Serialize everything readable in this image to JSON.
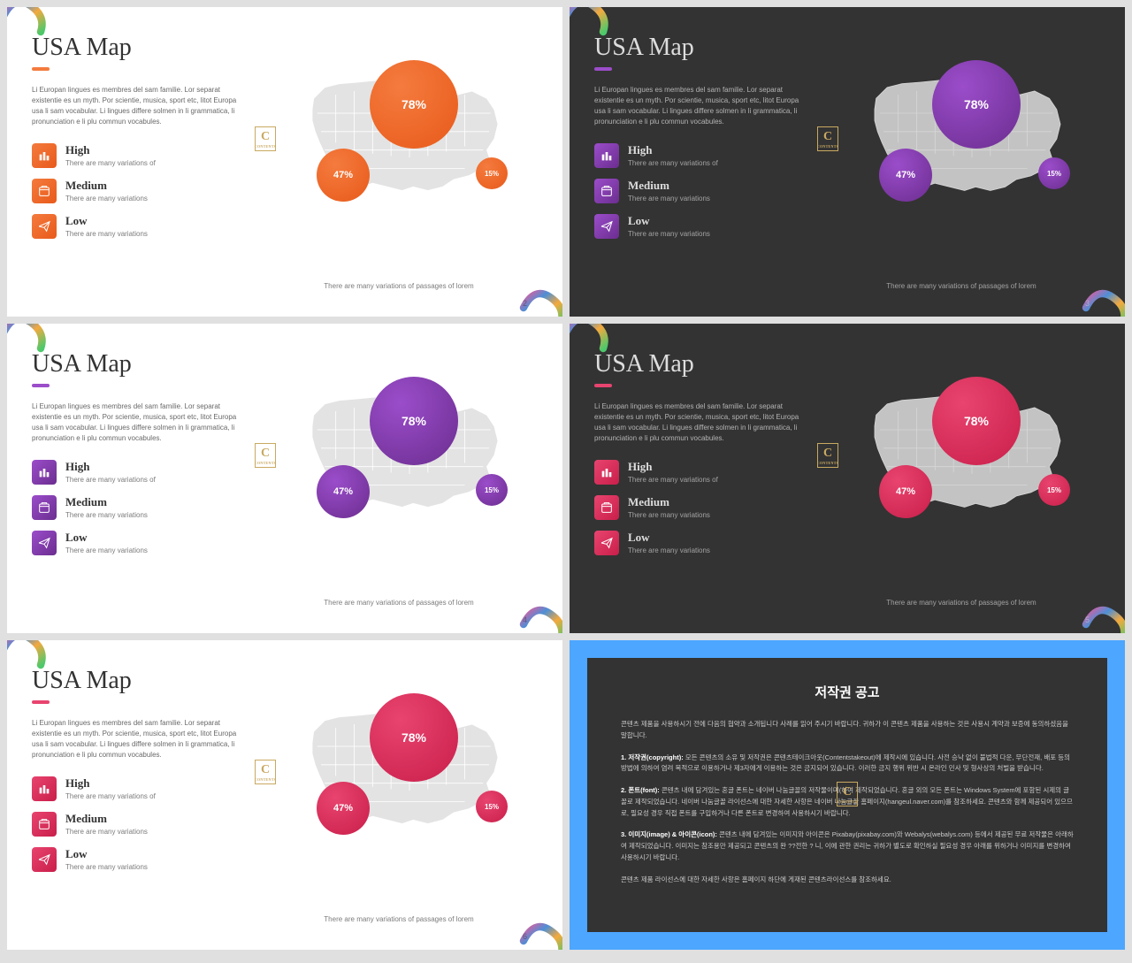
{
  "slides": [
    {
      "theme": "light",
      "accent": "#f47b3e",
      "accentDark": "#e85a1a",
      "page": "2",
      "corners": true
    },
    {
      "theme": "dark",
      "accent": "#9b4dca",
      "accentDark": "#6b2d8f",
      "page": "3",
      "corners": true
    },
    {
      "theme": "light",
      "accent": "#9b4dca",
      "accentDark": "#6b2d8f",
      "page": "4",
      "corners": true
    },
    {
      "theme": "dark",
      "accent": "#e8446f",
      "accentDark": "#c91e4a",
      "page": "5",
      "corners": true
    },
    {
      "theme": "light",
      "accent": "#e8446f",
      "accentDark": "#c91e4a",
      "page": "6",
      "corners": true
    }
  ],
  "common": {
    "title": "USA Map",
    "desc": "Li Europan lingues es membres del sam familie. Lor separat existentie es un myth. Por scientie, musica, sport etc, litot Europa usa li sam vocabular. Li lingues differe solmen in li grammatica, li pronunciation e li plu commun vocabules.",
    "legend": [
      {
        "title": "High",
        "sub": "There are many variations of"
      },
      {
        "title": "Medium",
        "sub": "There are many variations"
      },
      {
        "title": "Low",
        "sub": "There are many variations"
      }
    ],
    "bubbles": [
      "78%",
      "47%",
      "15%"
    ],
    "caption": "There are many variations of passages of lorem",
    "watermark": {
      "c": "C",
      "s": "CONTENTS"
    }
  },
  "copyright": {
    "title": "저작권 공고",
    "paras": [
      "콘텐츠 제품을 사용하시기 전에 다음의 협약과 소개됩니다 사례를 읽어 주시기 바랍니다. 귀하가 이 콘텐츠 제품을 사용하는 것은 사용시 계약과 보증에 동의하셨음을 말합니다.",
      "<b>1. 저작권(copyright):</b> 모든 콘텐츠의 소유 및 저작권은 콘텐츠테이크아웃(Contentstakeout)에 제작시에 있습니다. 사전 승낙 없이 불법적 다운, 무단전재, 배포 등의 방법에 의하여 염려 목적으로 이용하거나 제3자에게 이용하는 것은 금지되어 있습니다. 이러한 금지 행위 위반 시 온라인 민사 및 형사상의 처벌을 받습니다.",
      "<b>2. 폰트(font):</b> 콘텐츠 내에 담겨있는 혼글 폰트는 네이버 나눔글꼴의 저작물이며(하여 제작되었습니다. 혼글 외의 모든 폰트는 Windows System에 포함된 시제의 글꼴로 제작되었습니다. 네이버 나눔글꼴 라이선스에 대한 자세한 사항은 네이버 나눔글꼴 홈페이지(hangeul.naver.com)를 참조하세요. 콘텐츠와 함께 제공되어 있으므로, 필요성 경우 직접 폰트를 구입하거나 다른 폰트로 변경하여 사용하시기 바랍니다.",
      "<b>3. 이미지(image) & 아이콘(icon):</b> 콘텐츠 내에 담겨있는 이미지와 아이콘은 Pixabay(pixabay.com)와 Webalys(webalys.com) 등에서 제공된 무료 저작물은 아래하여 제작되었습니다. 이미지는 참조용만 제공되고 콘텐츠의 완 ??전한 ? 니, 이에 관한 권리는 귀하가 별도로 확인하실 필요성 경우 아래를 위하거나 이미지를 변경하여 사용하시기 바랍니다.",
      "콘텐츠 제품 라이선스에 대한 자세한 사항은 홈페이지 하단에 게재된 콘텐츠라이선스를 참조하세요."
    ]
  }
}
